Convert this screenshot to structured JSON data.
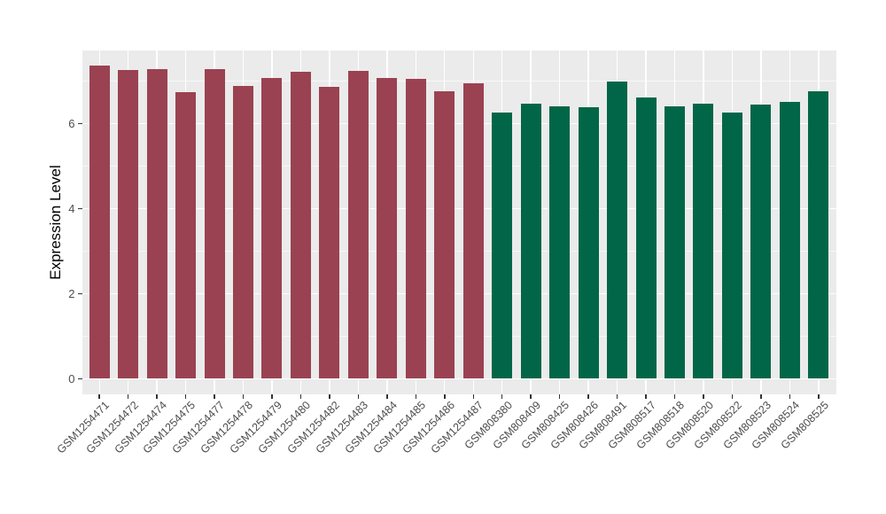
{
  "chart_data": {
    "type": "bar",
    "title": "",
    "xlabel": "",
    "ylabel": "Expression Level",
    "ylim": [
      -0.36,
      7.72
    ],
    "yticks": [
      0,
      2,
      4,
      6
    ],
    "yminor_gridlines": [
      1,
      3,
      5,
      7
    ],
    "grid": "on",
    "legend": "none",
    "panel_bg": "#ebebeb",
    "grid_color": "#ffffff",
    "tick_color": "#333333",
    "tick_label_color": "#4d4d4d",
    "bar_width_ratio": 0.71,
    "series": [
      {
        "name": "red-bars",
        "color": "#9a4252",
        "categories": [
          "GSM1254471",
          "GSM1254472",
          "GSM1254474",
          "GSM1254475",
          "GSM1254477",
          "GSM1254478",
          "GSM1254479",
          "GSM1254480",
          "GSM1254482",
          "GSM1254483",
          "GSM1254484",
          "GSM1254485",
          "GSM1254486",
          "GSM1254487"
        ],
        "values": [
          7.37,
          7.27,
          7.28,
          6.73,
          7.28,
          6.89,
          7.08,
          7.21,
          6.87,
          7.24,
          7.07,
          7.05,
          6.77,
          6.94
        ]
      },
      {
        "name": "green-bars",
        "color": "#016647",
        "categories": [
          "GSM808380",
          "GSM808409",
          "GSM808425",
          "GSM808426",
          "GSM808491",
          "GSM808517",
          "GSM808518",
          "GSM808520",
          "GSM808522",
          "GSM808523",
          "GSM808524",
          "GSM808525"
        ],
        "values": [
          6.27,
          6.47,
          6.41,
          6.39,
          6.98,
          6.61,
          6.4,
          6.47,
          6.27,
          6.45,
          6.52,
          6.77
        ]
      }
    ]
  }
}
